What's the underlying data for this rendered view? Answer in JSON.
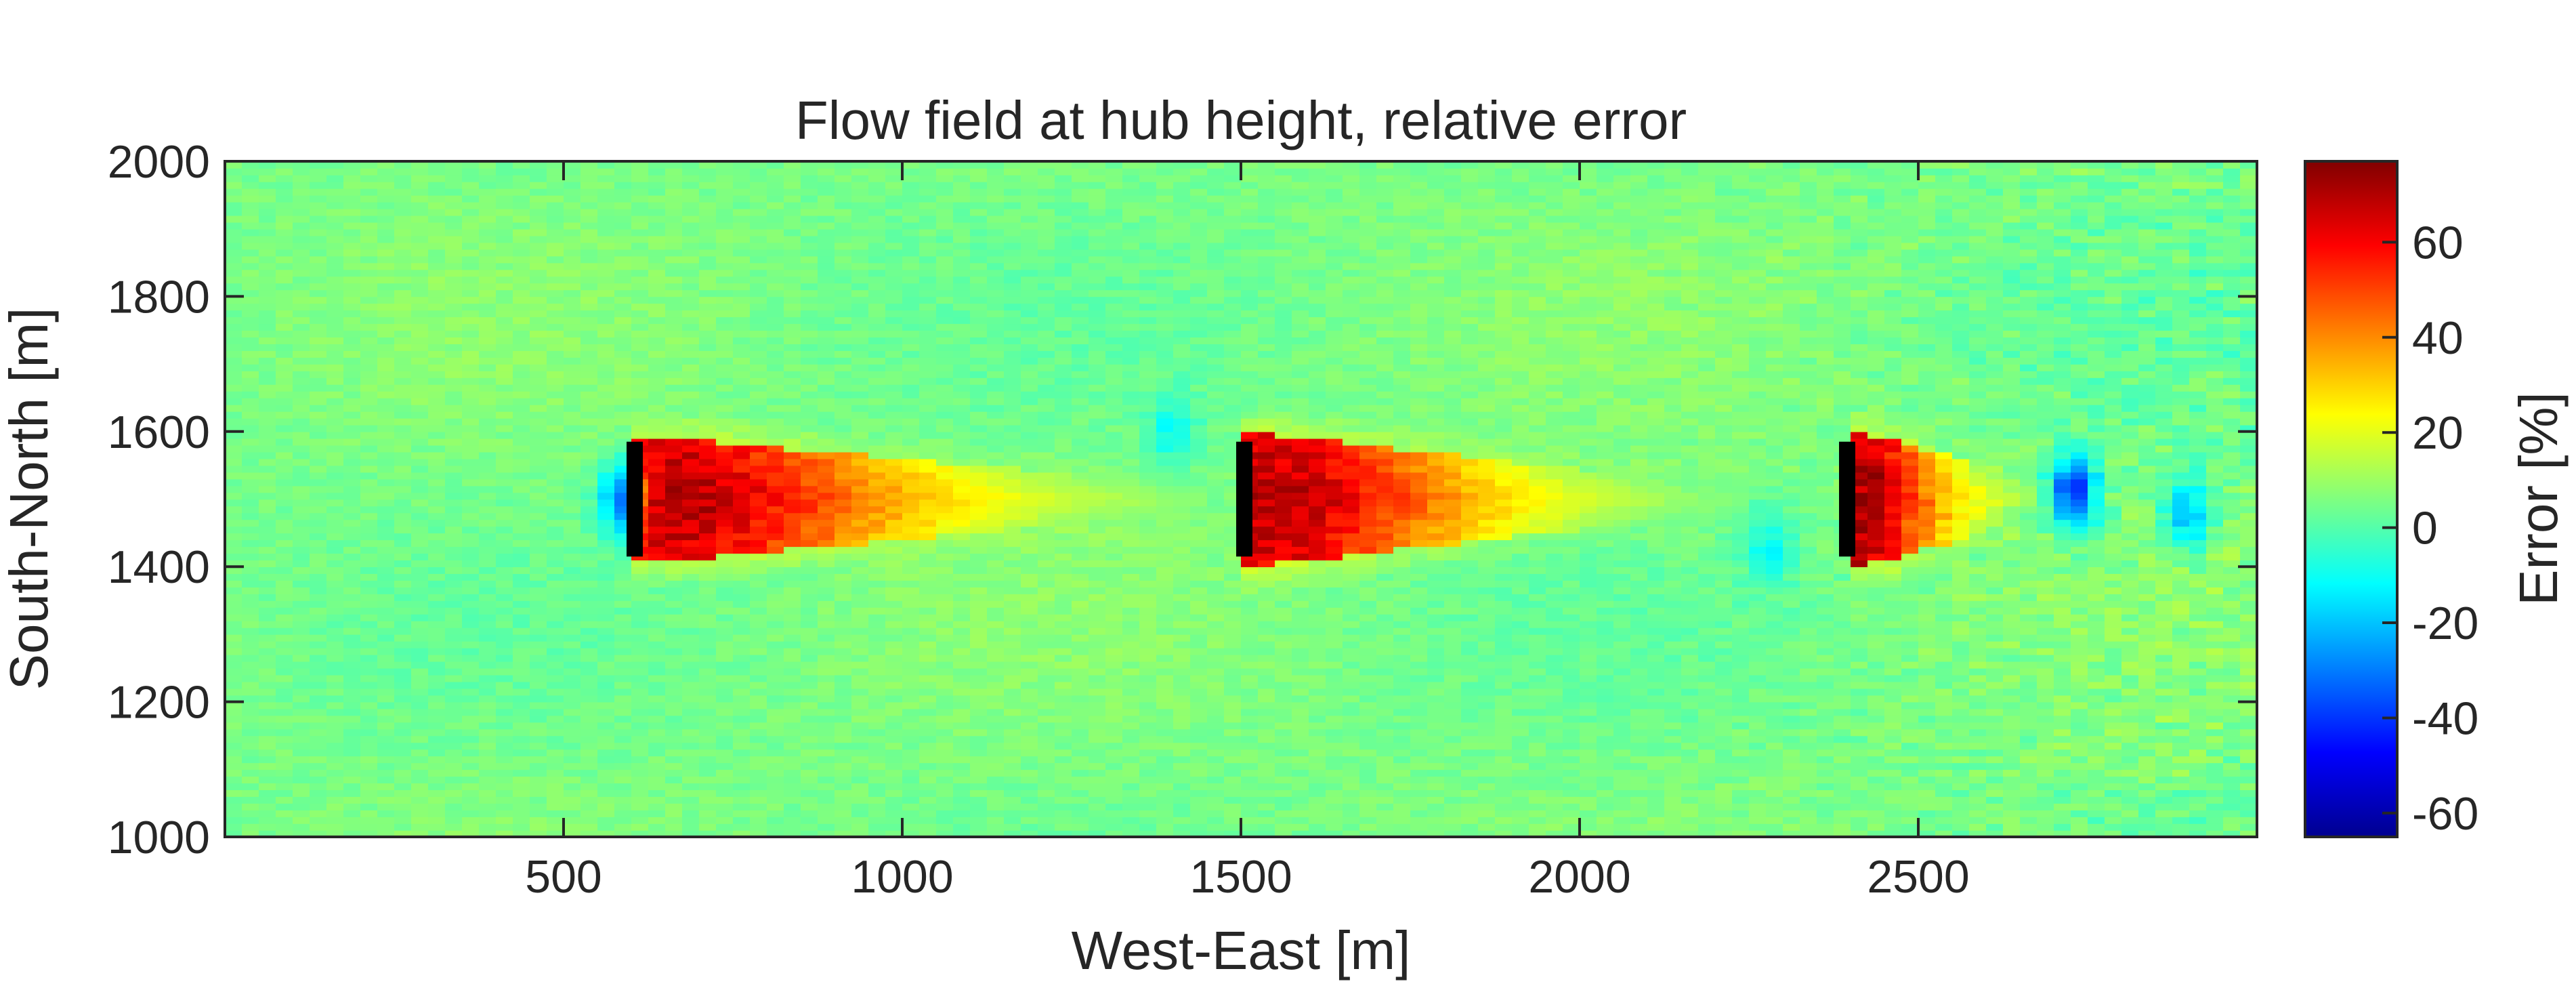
{
  "chart_data": {
    "type": "heatmap",
    "title": "Flow field at hub height, relative error",
    "xlabel": "West-East [m]",
    "ylabel": "South-North [m]",
    "colorbar_label": "Error [%]",
    "xlim": [
      0,
      3000
    ],
    "ylim": [
      1000,
      2000
    ],
    "x_ticks": [
      500,
      1000,
      1500,
      2000,
      2500
    ],
    "y_ticks": [
      1000,
      1200,
      1400,
      1600,
      1800,
      2000
    ],
    "color_range": [
      -65,
      77
    ],
    "colorbar_ticks": [
      60,
      40,
      20,
      0,
      -20,
      -40,
      -60
    ],
    "colormap": "jet",
    "turbines": [
      {
        "x": 605,
        "y_min": 1415,
        "y_max": 1585
      },
      {
        "x": 1505,
        "y_min": 1415,
        "y_max": 1585
      },
      {
        "x": 2395,
        "y_min": 1415,
        "y_max": 1585
      }
    ],
    "field_features": {
      "background_value": 5,
      "wakes": [
        {
          "x_start": 610,
          "x_end": 1200,
          "y_center": 1500,
          "half_width": 95,
          "peak_value": 70
        },
        {
          "x_start": 1510,
          "x_end": 2000,
          "y_center": 1500,
          "half_width": 100,
          "peak_value": 70
        },
        {
          "x_start": 2400,
          "x_end": 2600,
          "y_center": 1500,
          "half_width": 105,
          "peak_value": 72
        }
      ],
      "negative_spots": [
        {
          "x": 590,
          "y": 1500,
          "value": -35
        },
        {
          "x": 2730,
          "y": 1510,
          "value": -45
        },
        {
          "x": 2900,
          "y": 1480,
          "value": -25
        },
        {
          "x": 1400,
          "y": 1600,
          "value": -15
        },
        {
          "x": 2280,
          "y": 1430,
          "value": -15
        }
      ]
    }
  }
}
